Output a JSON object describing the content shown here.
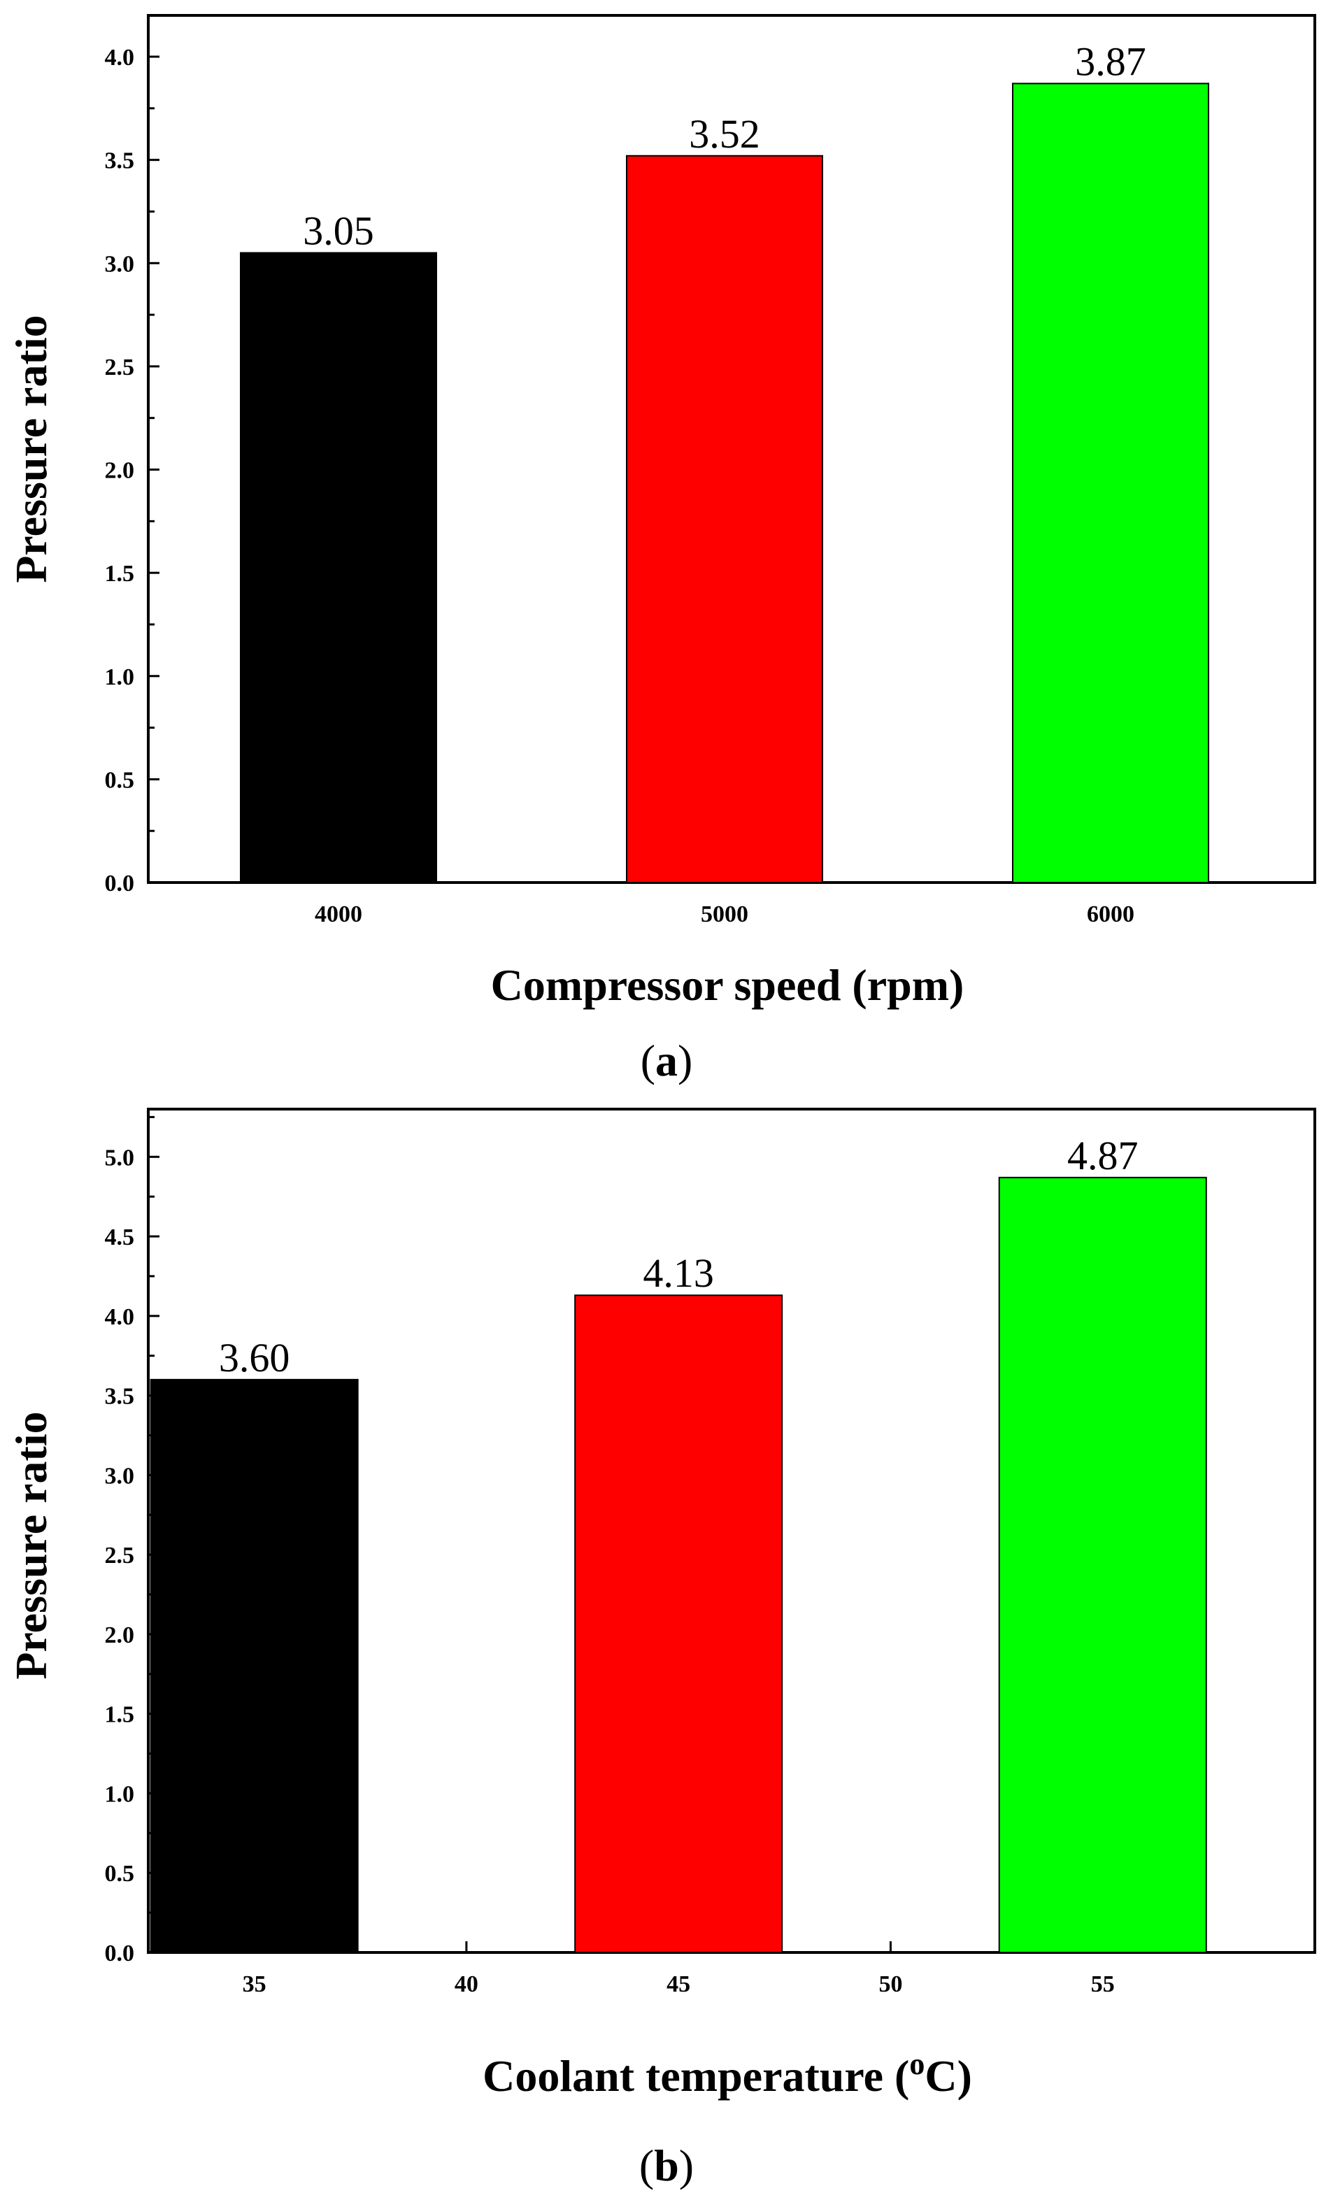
{
  "chart_data": [
    {
      "type": "bar",
      "panel_label": "a",
      "categories": [
        "4000",
        "5000",
        "6000"
      ],
      "values": [
        3.05,
        3.52,
        3.87
      ],
      "data_labels": [
        "3.05",
        "3.52",
        "3.87"
      ],
      "colors": [
        "#000000",
        "#ff0000",
        "#00ff00"
      ],
      "title": "",
      "xlabel": "Compressor speed (rpm)",
      "ylabel": "Pressure ratio",
      "ylim": [
        0,
        4.2
      ],
      "yticks": [
        "0.0",
        "0.5",
        "1.0",
        "1.5",
        "2.0",
        "2.5",
        "3.0",
        "3.5",
        "4.0"
      ],
      "grid": false,
      "legend": "none"
    },
    {
      "type": "bar",
      "panel_label": "b",
      "categories": [
        "35",
        "45",
        "55"
      ],
      "xticks": [
        "35",
        "40",
        "45",
        "50",
        "55"
      ],
      "values": [
        3.6,
        4.13,
        4.87
      ],
      "data_labels": [
        "3.60",
        "4.13",
        "4.87"
      ],
      "colors": [
        "#000000",
        "#ff0000",
        "#00ff00"
      ],
      "title": "",
      "xlabel_prefix": "Coolant temperature (",
      "xlabel_superscript": "o",
      "xlabel_suffix": "C)",
      "ylabel": "Pressure ratio",
      "ylim": [
        0,
        5.3
      ],
      "yticks": [
        "0.0",
        "0.5",
        "1.0",
        "1.5",
        "2.0",
        "2.5",
        "3.0",
        "3.5",
        "4.0",
        "4.5",
        "5.0"
      ],
      "grid": false,
      "legend": "none"
    }
  ]
}
